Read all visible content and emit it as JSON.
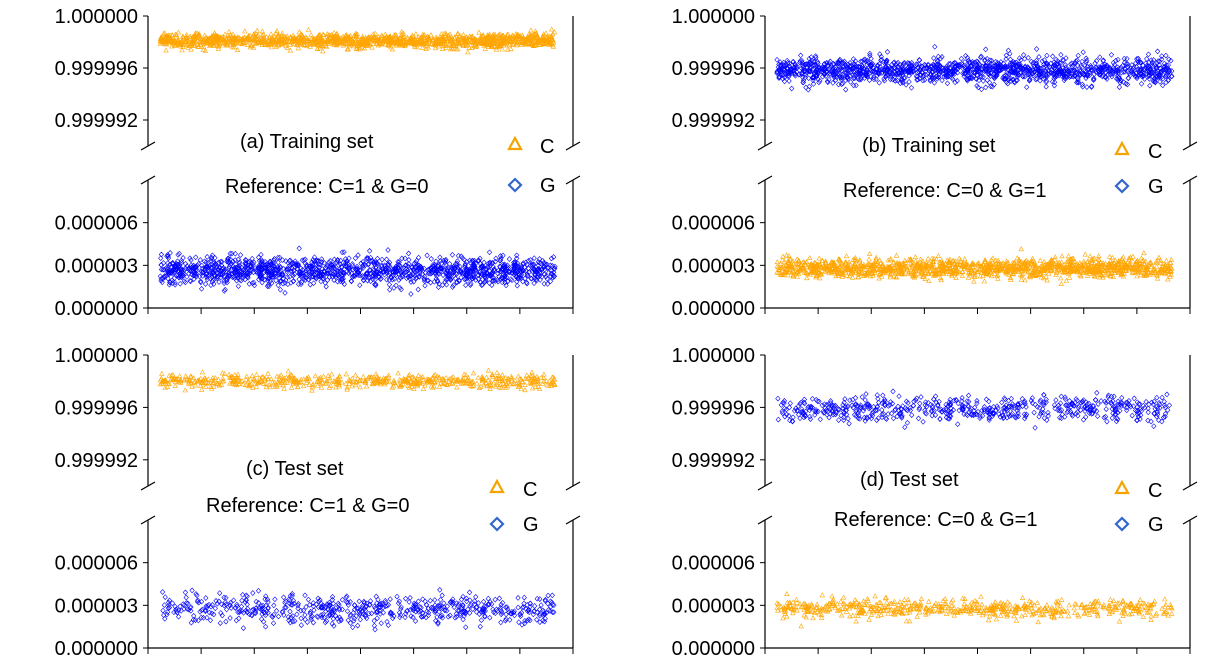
{
  "chart_data": [
    {
      "type": "scatter",
      "panel_label": "(a)  Training set",
      "reference": "Reference: C=1 & G=0",
      "legend": [
        {
          "label": "C",
          "marker": "triangle",
          "color": "#F5A300"
        },
        {
          "label": "G",
          "marker": "diamond",
          "color": "#3366CC"
        }
      ],
      "y_axis_broken": true,
      "upper_ylim": [
        0.99999,
        1.0
      ],
      "upper_ticks": [
        "1.000000",
        "0.999996",
        "0.999992"
      ],
      "lower_ylim": [
        0.0,
        9e-06
      ],
      "lower_ticks": [
        "0.000006",
        "0.000003",
        "0.000000"
      ],
      "series": [
        {
          "name": "C",
          "color": "#FFA500",
          "marker": "triangle",
          "band": "upper",
          "center": 0.9999981,
          "spread": 5e-07,
          "n_points": 1400
        },
        {
          "name": "G",
          "color": "#0000FF",
          "marker": "diamond",
          "band": "lower",
          "center": 2.6e-06,
          "spread": 9e-07,
          "n_points": 1400
        }
      ]
    },
    {
      "type": "scatter",
      "panel_label": "(b)  Training set",
      "reference": "Reference: C=0 & G=1",
      "legend": [
        {
          "label": "C",
          "marker": "triangle",
          "color": "#F5A300"
        },
        {
          "label": "G",
          "marker": "diamond",
          "color": "#3366CC"
        }
      ],
      "y_axis_broken": true,
      "upper_ylim": [
        0.99999,
        1.0
      ],
      "upper_ticks": [
        "1.000000",
        "0.999996",
        "0.999992"
      ],
      "lower_ylim": [
        0.0,
        9e-06
      ],
      "lower_ticks": [
        "0.000006",
        "0.000003",
        "0.000000"
      ],
      "series": [
        {
          "name": "G",
          "color": "#0000FF",
          "marker": "diamond",
          "band": "upper",
          "center": 0.9999958,
          "spread": 9e-07,
          "n_points": 1400
        },
        {
          "name": "C",
          "color": "#FFA500",
          "marker": "triangle",
          "band": "lower",
          "center": 2.8e-06,
          "spread": 6e-07,
          "n_points": 1400
        }
      ]
    },
    {
      "type": "scatter",
      "panel_label": "(c)  Test set",
      "reference": "Reference: C=1 & G=0",
      "legend": [
        {
          "label": "C",
          "marker": "triangle",
          "color": "#F5A300"
        },
        {
          "label": "G",
          "marker": "diamond",
          "color": "#3366CC"
        }
      ],
      "y_axis_broken": true,
      "upper_ylim": [
        0.99999,
        1.0
      ],
      "upper_ticks": [
        "1.000000",
        "0.999996",
        "0.999992"
      ],
      "lower_ylim": [
        0.0,
        9e-06
      ],
      "lower_ticks": [
        "0.000006",
        "0.000003",
        "0.000000"
      ],
      "series": [
        {
          "name": "C",
          "color": "#FFA500",
          "marker": "triangle",
          "band": "upper",
          "center": 0.999998,
          "spread": 5e-07,
          "n_points": 600
        },
        {
          "name": "G",
          "color": "#0000FF",
          "marker": "diamond",
          "band": "lower",
          "center": 2.7e-06,
          "spread": 9e-07,
          "n_points": 600
        }
      ]
    },
    {
      "type": "scatter",
      "panel_label": "(d)  Test set",
      "reference": "Reference: C=0 & G=1",
      "legend": [
        {
          "label": "C",
          "marker": "triangle",
          "color": "#F5A300"
        },
        {
          "label": "G",
          "marker": "diamond",
          "color": "#3366CC"
        }
      ],
      "y_axis_broken": true,
      "upper_ylim": [
        0.99999,
        1.0
      ],
      "upper_ticks": [
        "1.000000",
        "0.999996",
        "0.999992"
      ],
      "lower_ylim": [
        0.0,
        9e-06
      ],
      "lower_ticks": [
        "0.000006",
        "0.000003",
        "0.000000"
      ],
      "series": [
        {
          "name": "G",
          "color": "#0000FF",
          "marker": "diamond",
          "band": "upper",
          "center": 0.9999959,
          "spread": 9e-07,
          "n_points": 600
        },
        {
          "name": "C",
          "color": "#FFA500",
          "marker": "triangle",
          "band": "lower",
          "center": 2.8e-06,
          "spread": 6e-07,
          "n_points": 600
        }
      ]
    }
  ]
}
